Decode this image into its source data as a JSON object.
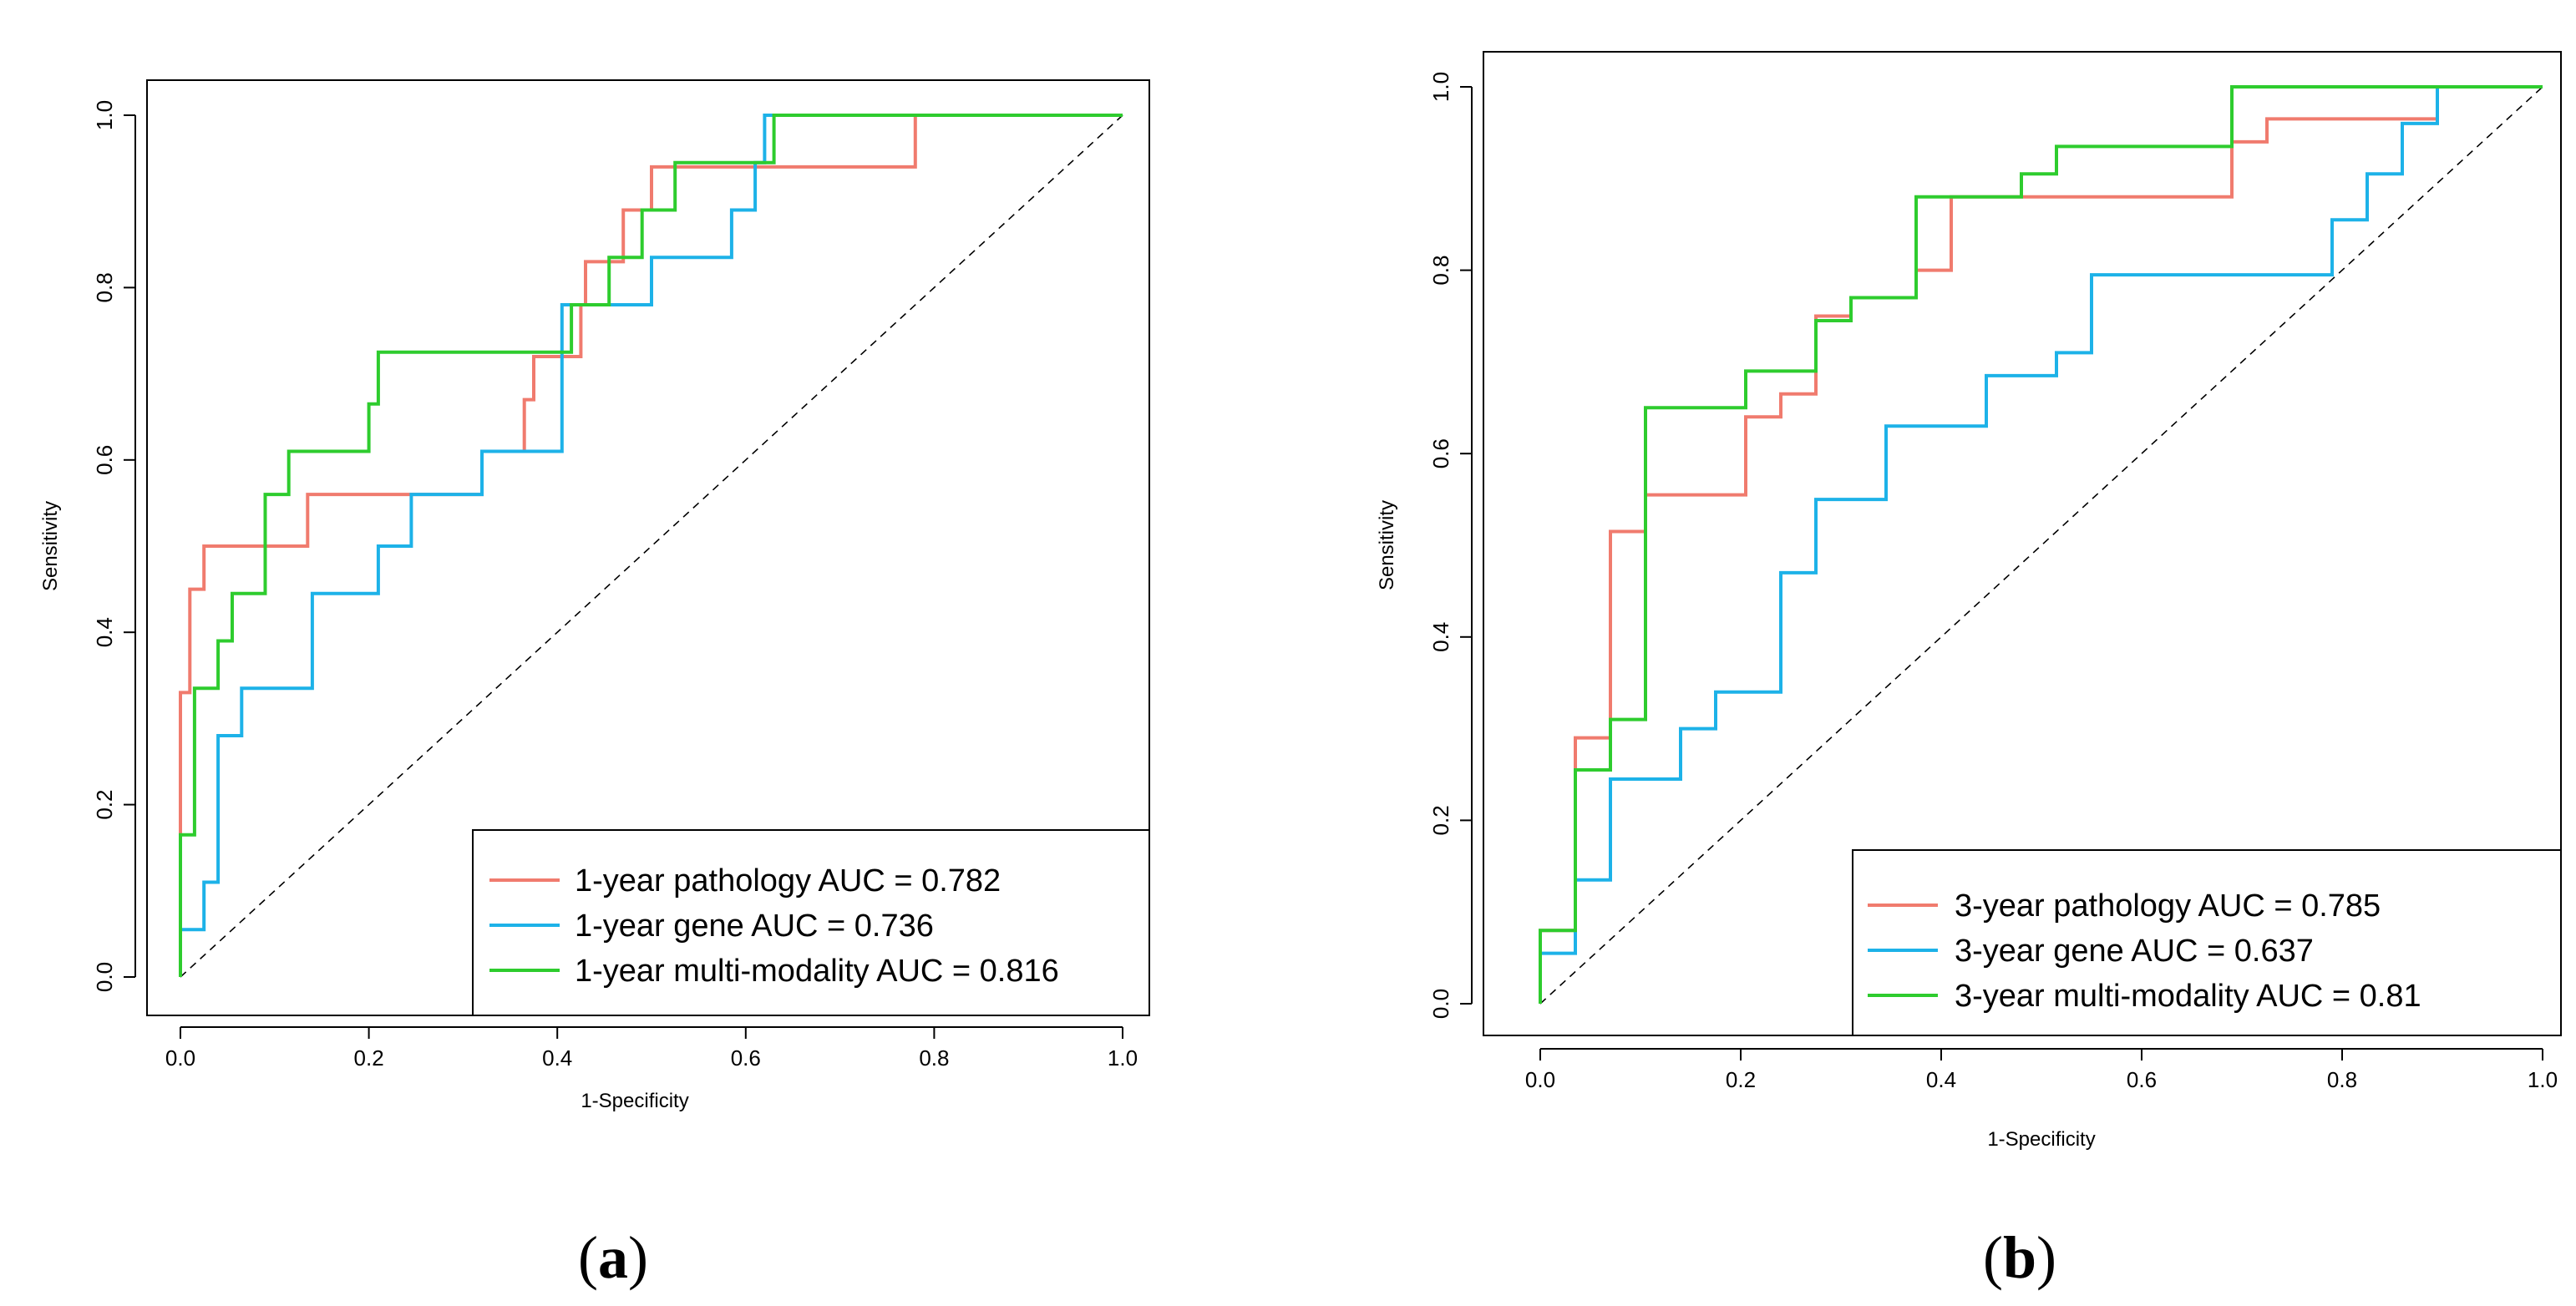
{
  "chart_data": [
    {
      "type": "line",
      "subtype": "roc",
      "panel_label": "(a)",
      "panel_letter": "a",
      "xlabel": "1-Specificity",
      "ylabel": "Sensitivity",
      "xlim": [
        0,
        1
      ],
      "ylim": [
        0,
        1
      ],
      "xticks": [
        "0.0",
        "0.2",
        "0.4",
        "0.6",
        "0.8",
        "1.0"
      ],
      "yticks": [
        "0.0",
        "0.2",
        "0.4",
        "0.6",
        "0.8",
        "1.0"
      ],
      "legend_position": "bottom-right",
      "diagonal": true,
      "series": [
        {
          "name": "1-year pathology AUC = 0.782",
          "color": "#F07B6E",
          "points": [
            [
              0,
              0
            ],
            [
              0,
              0.33
            ],
            [
              0.01,
              0.33
            ],
            [
              0.01,
              0.45
            ],
            [
              0.025,
              0.45
            ],
            [
              0.025,
              0.5
            ],
            [
              0.135,
              0.5
            ],
            [
              0.135,
              0.56
            ],
            [
              0.32,
              0.56
            ],
            [
              0.32,
              0.61
            ],
            [
              0.365,
              0.61
            ],
            [
              0.365,
              0.67
            ],
            [
              0.375,
              0.67
            ],
            [
              0.375,
              0.72
            ],
            [
              0.425,
              0.72
            ],
            [
              0.425,
              0.78
            ],
            [
              0.43,
              0.78
            ],
            [
              0.43,
              0.83
            ],
            [
              0.47,
              0.83
            ],
            [
              0.47,
              0.89
            ],
            [
              0.5,
              0.89
            ],
            [
              0.5,
              0.94
            ],
            [
              0.78,
              0.94
            ],
            [
              0.78,
              1.0
            ],
            [
              1.0,
              1.0
            ]
          ]
        },
        {
          "name": "1-year gene AUC = 0.736",
          "color": "#1DB2E8",
          "points": [
            [
              0,
              0
            ],
            [
              0,
              0.055
            ],
            [
              0.025,
              0.055
            ],
            [
              0.025,
              0.11
            ],
            [
              0.04,
              0.11
            ],
            [
              0.04,
              0.28
            ],
            [
              0.065,
              0.28
            ],
            [
              0.065,
              0.335
            ],
            [
              0.14,
              0.335
            ],
            [
              0.14,
              0.445
            ],
            [
              0.21,
              0.445
            ],
            [
              0.21,
              0.5
            ],
            [
              0.245,
              0.5
            ],
            [
              0.245,
              0.56
            ],
            [
              0.32,
              0.56
            ],
            [
              0.32,
              0.61
            ],
            [
              0.405,
              0.61
            ],
            [
              0.405,
              0.78
            ],
            [
              0.5,
              0.78
            ],
            [
              0.5,
              0.835
            ],
            [
              0.585,
              0.835
            ],
            [
              0.585,
              0.89
            ],
            [
              0.61,
              0.89
            ],
            [
              0.61,
              0.945
            ],
            [
              0.62,
              0.945
            ],
            [
              0.62,
              1.0
            ],
            [
              1.0,
              1.0
            ]
          ]
        },
        {
          "name": "1-year multi-modality AUC = 0.816",
          "color": "#2ECC2E",
          "points": [
            [
              0,
              0
            ],
            [
              0,
              0.165
            ],
            [
              0.015,
              0.165
            ],
            [
              0.015,
              0.335
            ],
            [
              0.04,
              0.335
            ],
            [
              0.04,
              0.39
            ],
            [
              0.055,
              0.39
            ],
            [
              0.055,
              0.445
            ],
            [
              0.09,
              0.445
            ],
            [
              0.09,
              0.56
            ],
            [
              0.115,
              0.56
            ],
            [
              0.115,
              0.61
            ],
            [
              0.2,
              0.61
            ],
            [
              0.2,
              0.665
            ],
            [
              0.21,
              0.665
            ],
            [
              0.21,
              0.725
            ],
            [
              0.415,
              0.725
            ],
            [
              0.415,
              0.78
            ],
            [
              0.455,
              0.78
            ],
            [
              0.455,
              0.835
            ],
            [
              0.49,
              0.835
            ],
            [
              0.49,
              0.89
            ],
            [
              0.525,
              0.89
            ],
            [
              0.525,
              0.945
            ],
            [
              0.63,
              0.945
            ],
            [
              0.63,
              1.0
            ],
            [
              1.0,
              1.0
            ]
          ]
        }
      ]
    },
    {
      "type": "line",
      "subtype": "roc",
      "panel_label": "(b)",
      "panel_letter": "b",
      "xlabel": "1-Specificity",
      "ylabel": "Sensitivity",
      "xlim": [
        0,
        1
      ],
      "ylim": [
        0,
        1
      ],
      "xticks": [
        "0.0",
        "0.2",
        "0.4",
        "0.6",
        "0.8",
        "1.0"
      ],
      "yticks": [
        "0.0",
        "0.2",
        "0.4",
        "0.6",
        "0.8",
        "1.0"
      ],
      "legend_position": "bottom-right",
      "diagonal": true,
      "series": [
        {
          "name": "3-year pathology AUC = 0.785",
          "color": "#F07B6E",
          "points": [
            [
              0,
              0
            ],
            [
              0,
              0.08
            ],
            [
              0.035,
              0.08
            ],
            [
              0.035,
              0.29
            ],
            [
              0.07,
              0.29
            ],
            [
              0.07,
              0.515
            ],
            [
              0.105,
              0.515
            ],
            [
              0.105,
              0.555
            ],
            [
              0.205,
              0.555
            ],
            [
              0.205,
              0.64
            ],
            [
              0.24,
              0.64
            ],
            [
              0.24,
              0.665
            ],
            [
              0.275,
              0.665
            ],
            [
              0.275,
              0.75
            ],
            [
              0.31,
              0.75
            ],
            [
              0.31,
              0.77
            ],
            [
              0.375,
              0.77
            ],
            [
              0.375,
              0.8
            ],
            [
              0.41,
              0.8
            ],
            [
              0.41,
              0.88
            ],
            [
              0.69,
              0.88
            ],
            [
              0.69,
              0.94
            ],
            [
              0.725,
              0.94
            ],
            [
              0.725,
              0.965
            ],
            [
              0.895,
              0.965
            ],
            [
              0.895,
              1.0
            ],
            [
              1.0,
              1.0
            ]
          ]
        },
        {
          "name": "3-year gene AUC = 0.637",
          "color": "#1DB2E8",
          "points": [
            [
              0,
              0
            ],
            [
              0,
              0.055
            ],
            [
              0.035,
              0.055
            ],
            [
              0.035,
              0.135
            ],
            [
              0.07,
              0.135
            ],
            [
              0.07,
              0.245
            ],
            [
              0.14,
              0.245
            ],
            [
              0.14,
              0.3
            ],
            [
              0.175,
              0.3
            ],
            [
              0.175,
              0.34
            ],
            [
              0.24,
              0.34
            ],
            [
              0.24,
              0.47
            ],
            [
              0.275,
              0.47
            ],
            [
              0.275,
              0.55
            ],
            [
              0.345,
              0.55
            ],
            [
              0.345,
              0.63
            ],
            [
              0.445,
              0.63
            ],
            [
              0.445,
              0.685
            ],
            [
              0.515,
              0.685
            ],
            [
              0.515,
              0.71
            ],
            [
              0.55,
              0.71
            ],
            [
              0.55,
              0.795
            ],
            [
              0.79,
              0.795
            ],
            [
              0.79,
              0.855
            ],
            [
              0.825,
              0.855
            ],
            [
              0.825,
              0.905
            ],
            [
              0.86,
              0.905
            ],
            [
              0.86,
              0.96
            ],
            [
              0.895,
              0.96
            ],
            [
              0.895,
              1.0
            ],
            [
              1.0,
              1.0
            ]
          ]
        },
        {
          "name": "3-year multi-modality AUC = 0.81",
          "color": "#2ECC2E",
          "points": [
            [
              0,
              0
            ],
            [
              0,
              0.08
            ],
            [
              0.035,
              0.08
            ],
            [
              0.035,
              0.255
            ],
            [
              0.07,
              0.255
            ],
            [
              0.07,
              0.31
            ],
            [
              0.105,
              0.31
            ],
            [
              0.105,
              0.65
            ],
            [
              0.205,
              0.65
            ],
            [
              0.205,
              0.69
            ],
            [
              0.275,
              0.69
            ],
            [
              0.275,
              0.745
            ],
            [
              0.31,
              0.745
            ],
            [
              0.31,
              0.77
            ],
            [
              0.375,
              0.77
            ],
            [
              0.375,
              0.88
            ],
            [
              0.48,
              0.88
            ],
            [
              0.48,
              0.905
            ],
            [
              0.515,
              0.905
            ],
            [
              0.515,
              0.935
            ],
            [
              0.69,
              0.935
            ],
            [
              0.69,
              1.0
            ],
            [
              1.0,
              1.0
            ]
          ]
        }
      ]
    }
  ]
}
